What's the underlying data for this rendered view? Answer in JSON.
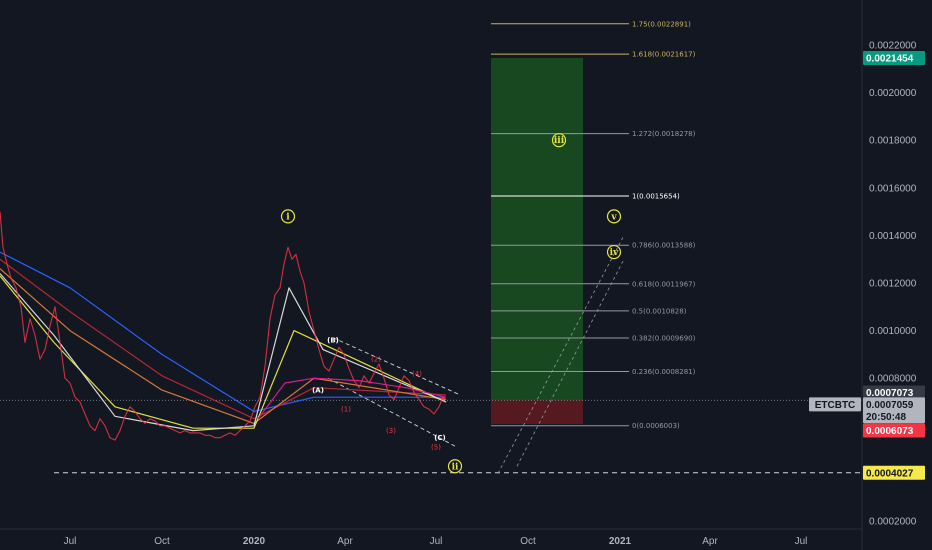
{
  "colors": {
    "background": "#131722",
    "axis_text": "#b2b5be",
    "price_line": "#ffffff",
    "ema_blue": "#2962ff",
    "ema_red": "#b22833",
    "ema_orange": "#d4783a",
    "ema_yellow": "#e0e040",
    "ema_white": "#d8d8d8",
    "ema_magenta": "#d81b8e",
    "fib_gold": "#c9b458",
    "fib_grey": "#9598a1",
    "target_green": "#1b5e20",
    "stop_red": "#5d1a1f"
  },
  "chart_data": {
    "type": "line",
    "symbol": "ETCBTC",
    "x_ticks": [
      "Jul",
      "Oct",
      "2020",
      "Apr",
      "Jul",
      "Oct",
      "2021",
      "Apr",
      "Jul"
    ],
    "y_ticks": [
      "0.0022000",
      "0.0020000",
      "0.0018000",
      "0.0016000",
      "0.0014000",
      "0.0012000",
      "0.0010000",
      "0.0008000",
      "0.0002000"
    ],
    "ylim": [
      0.0001,
      0.0023
    ],
    "price_series": [
      [
        "2019-04-22",
        0.0015
      ],
      [
        "2019-04-25",
        0.00135
      ],
      [
        "2019-04-29",
        0.00128
      ],
      [
        "2019-05-03",
        0.00122
      ],
      [
        "2019-05-08",
        0.00118
      ],
      [
        "2019-05-13",
        0.0011
      ],
      [
        "2019-05-17",
        0.00095
      ],
      [
        "2019-05-22",
        0.00105
      ],
      [
        "2019-05-27",
        0.00098
      ],
      [
        "2019-06-01",
        0.00088
      ],
      [
        "2019-06-06",
        0.00092
      ],
      [
        "2019-06-11",
        0.00102
      ],
      [
        "2019-06-16",
        0.0011
      ],
      [
        "2019-06-21",
        0.00095
      ],
      [
        "2019-06-26",
        0.0008
      ],
      [
        "2019-07-01",
        0.00078
      ],
      [
        "2019-07-06",
        0.00072
      ],
      [
        "2019-07-11",
        0.0007
      ],
      [
        "2019-07-16",
        0.00065
      ],
      [
        "2019-07-21",
        0.0006
      ],
      [
        "2019-07-26",
        0.00058
      ],
      [
        "2019-07-31",
        0.00063
      ],
      [
        "2019-08-05",
        0.0006
      ],
      [
        "2019-08-10",
        0.00055
      ],
      [
        "2019-08-15",
        0.00054
      ],
      [
        "2019-08-20",
        0.00058
      ],
      [
        "2019-08-25",
        0.00064
      ],
      [
        "2019-08-30",
        0.00068
      ],
      [
        "2019-09-04",
        0.00066
      ],
      [
        "2019-09-09",
        0.00063
      ],
      [
        "2019-09-14",
        0.00061
      ],
      [
        "2019-09-19",
        0.00063
      ],
      [
        "2019-09-24",
        0.00062
      ],
      [
        "2019-09-29",
        0.0006
      ],
      [
        "2019-10-04",
        0.0006
      ],
      [
        "2019-10-09",
        0.00059
      ],
      [
        "2019-10-14",
        0.00058
      ],
      [
        "2019-10-19",
        0.00057
      ],
      [
        "2019-10-24",
        0.00058
      ],
      [
        "2019-10-29",
        0.00057
      ],
      [
        "2019-11-03",
        0.00057
      ],
      [
        "2019-11-08",
        0.00057
      ],
      [
        "2019-11-13",
        0.00056
      ],
      [
        "2019-11-18",
        0.00056
      ],
      [
        "2019-11-23",
        0.00055
      ],
      [
        "2019-11-28",
        0.00055
      ],
      [
        "2019-12-03",
        0.00056
      ],
      [
        "2019-12-08",
        0.00057
      ],
      [
        "2019-12-13",
        0.00056
      ],
      [
        "2019-12-18",
        0.00058
      ],
      [
        "2019-12-23",
        0.0006
      ],
      [
        "2019-12-28",
        0.00062
      ],
      [
        "2020-01-02",
        0.00068
      ],
      [
        "2020-01-07",
        0.00072
      ],
      [
        "2020-01-12",
        0.00085
      ],
      [
        "2020-01-17",
        0.00105
      ],
      [
        "2020-01-22",
        0.00115
      ],
      [
        "2020-01-27",
        0.00118
      ],
      [
        "2020-01-31",
        0.00128
      ],
      [
        "2020-02-04",
        0.00135
      ],
      [
        "2020-02-08",
        0.0013
      ],
      [
        "2020-02-12",
        0.00132
      ],
      [
        "2020-02-16",
        0.00125
      ],
      [
        "2020-02-20",
        0.0012
      ],
      [
        "2020-02-25",
        0.00108
      ],
      [
        "2020-03-01",
        0.001
      ],
      [
        "2020-03-06",
        0.00092
      ],
      [
        "2020-03-11",
        0.00085
      ],
      [
        "2020-03-16",
        0.00083
      ],
      [
        "2020-03-21",
        0.00088
      ],
      [
        "2020-03-26",
        0.00093
      ],
      [
        "2020-03-31",
        0.0009
      ],
      [
        "2020-04-05",
        0.00084
      ],
      [
        "2020-04-10",
        0.00079
      ],
      [
        "2020-04-15",
        0.00076
      ],
      [
        "2020-04-20",
        0.00081
      ],
      [
        "2020-04-25",
        0.00078
      ],
      [
        "2020-04-30",
        0.00082
      ],
      [
        "2020-05-05",
        0.00086
      ],
      [
        "2020-05-10",
        0.0008
      ],
      [
        "2020-05-15",
        0.00073
      ],
      [
        "2020-05-20",
        0.00071
      ],
      [
        "2020-05-25",
        0.00076
      ],
      [
        "2020-05-30",
        0.00081
      ],
      [
        "2020-06-04",
        0.00079
      ],
      [
        "2020-06-09",
        0.00074
      ],
      [
        "2020-06-14",
        0.00071
      ],
      [
        "2020-06-19",
        0.00068
      ],
      [
        "2020-06-24",
        0.00067
      ],
      [
        "2020-06-29",
        0.00065
      ],
      [
        "2020-07-04",
        0.00068
      ],
      [
        "2020-07-08",
        0.00072
      ],
      [
        "2020-07-11",
        0.00071
      ]
    ],
    "emas": [
      {
        "color_key": "ema_blue",
        "points": [
          [
            "2019-04-22",
            0.00133
          ],
          [
            "2019-07-01",
            0.00118
          ],
          [
            "2019-10-01",
            0.0009
          ],
          [
            "2020-01-01",
            0.00066
          ],
          [
            "2020-03-01",
            0.00072
          ],
          [
            "2020-07-11",
            0.00072
          ]
        ]
      },
      {
        "color_key": "ema_red",
        "points": [
          [
            "2019-04-22",
            0.0013
          ],
          [
            "2019-07-01",
            0.00108
          ],
          [
            "2019-10-01",
            0.00081
          ],
          [
            "2020-01-01",
            0.00063
          ],
          [
            "2020-03-01",
            0.00076
          ],
          [
            "2020-07-11",
            0.00073
          ]
        ]
      },
      {
        "color_key": "ema_orange",
        "points": [
          [
            "2019-04-22",
            0.00126
          ],
          [
            "2019-07-01",
            0.001
          ],
          [
            "2019-10-01",
            0.00075
          ],
          [
            "2020-01-01",
            0.00061
          ],
          [
            "2020-03-01",
            0.0008
          ],
          [
            "2020-07-11",
            0.00071
          ]
        ]
      },
      {
        "color_key": "ema_yellow",
        "points": [
          [
            "2019-04-22",
            0.00123
          ],
          [
            "2019-06-15",
            0.00095
          ],
          [
            "2019-08-15",
            0.00068
          ],
          [
            "2019-11-01",
            0.00059
          ],
          [
            "2020-01-01",
            0.00059
          ],
          [
            "2020-02-10",
            0.001
          ],
          [
            "2020-04-01",
            0.0009
          ],
          [
            "2020-07-11",
            0.0007
          ]
        ]
      },
      {
        "color_key": "ema_white",
        "points": [
          [
            "2019-04-22",
            0.00124
          ],
          [
            "2019-06-15",
            0.00098
          ],
          [
            "2019-08-15",
            0.00064
          ],
          [
            "2019-11-01",
            0.00058
          ],
          [
            "2020-01-01",
            0.0006
          ],
          [
            "2020-02-05",
            0.00118
          ],
          [
            "2020-03-10",
            0.00092
          ],
          [
            "2020-07-11",
            0.0007
          ]
        ]
      },
      {
        "color_key": "ema_magenta",
        "points": [
          [
            "2020-01-05",
            0.00063
          ],
          [
            "2020-02-01",
            0.00078
          ],
          [
            "2020-03-01",
            0.0008
          ],
          [
            "2020-04-15",
            0.00079
          ],
          [
            "2020-06-01",
            0.00076
          ],
          [
            "2020-07-11",
            0.00072
          ]
        ]
      }
    ],
    "fib_levels": [
      {
        "ratio": "1.75",
        "price": "0.0022891",
        "color_key": "fib_gold"
      },
      {
        "ratio": "1.618",
        "price": "0.0021617",
        "color_key": "fib_gold"
      },
      {
        "ratio": "1.272",
        "price": "0.0018278",
        "color_key": "fib_grey"
      },
      {
        "ratio": "1",
        "price": "0.0015654",
        "color_key": "price_line"
      },
      {
        "ratio": "0.786",
        "price": "0.0013588",
        "color_key": "fib_grey"
      },
      {
        "ratio": "0.618",
        "price": "0.0011967",
        "color_key": "fib_grey"
      },
      {
        "ratio": "0.5",
        "price": "0.0010828",
        "color_key": "fib_grey"
      },
      {
        "ratio": "0.382",
        "price": "0.0009690",
        "color_key": "fib_grey"
      },
      {
        "ratio": "0.236",
        "price": "0.0008281",
        "color_key": "fib_grey"
      },
      {
        "ratio": "0",
        "price": "0.0006003",
        "color_key": "fib_grey"
      }
    ],
    "position": {
      "entry": 0.0007073,
      "target": 0.0021454,
      "stop": 0.0006073
    },
    "support_line": 0.0004027,
    "wave_labels": [
      {
        "text": "i",
        "style": "roman",
        "date": "2020-02-04",
        "price": 0.00148
      },
      {
        "text": "ii",
        "style": "roman",
        "date": "2020-07-20",
        "price": 0.00043
      },
      {
        "text": "iii",
        "style": "roman",
        "date": "2020-11-01",
        "price": 0.0018
      },
      {
        "text": "iv",
        "style": "roman",
        "date": "2020-12-26",
        "price": 0.00133
      },
      {
        "text": "v",
        "style": "roman",
        "date": "2020-12-26",
        "price": 0.00148
      },
      {
        "text": "(A)",
        "style": "white",
        "date": "2020-03-05",
        "price": 0.00074
      },
      {
        "text": "(B)",
        "style": "white",
        "date": "2020-03-20",
        "price": 0.00095
      },
      {
        "text": "(C)",
        "style": "white",
        "date": "2020-07-05",
        "price": 0.00054
      },
      {
        "text": "(1)",
        "style": "red",
        "date": "2020-04-02",
        "price": 0.00066
      },
      {
        "text": "(2)",
        "style": "red",
        "date": "2020-05-02",
        "price": 0.00087
      },
      {
        "text": "(3)",
        "style": "red",
        "date": "2020-05-17",
        "price": 0.00057
      },
      {
        "text": "(4)",
        "style": "red",
        "date": "2020-06-12",
        "price": 0.00081
      },
      {
        "text": "(5)",
        "style": "red",
        "date": "2020-07-01",
        "price": 0.0005
      }
    ],
    "price_badges": [
      {
        "text": "0.0021454",
        "bg": "#089981",
        "fg": "#ffffff",
        "price": 0.0021454
      },
      {
        "text": "0.0007073",
        "bg": "#363a45",
        "fg": "#ffffff",
        "price": 0.00074
      },
      {
        "text": "0.0007059",
        "bg": "#b2b5be",
        "fg": "#131722",
        "price": 0.00069,
        "label": "ETCBTC"
      },
      {
        "text": "20:50:48",
        "bg": "#b2b5be",
        "fg": "#131722",
        "price": 0.00064
      },
      {
        "text": "0.0006073",
        "bg": "#f23645",
        "fg": "#ffffff",
        "price": 0.00058
      },
      {
        "text": "0.0004027",
        "bg": "#f5e94b",
        "fg": "#131722",
        "price": 0.0004027
      }
    ]
  }
}
